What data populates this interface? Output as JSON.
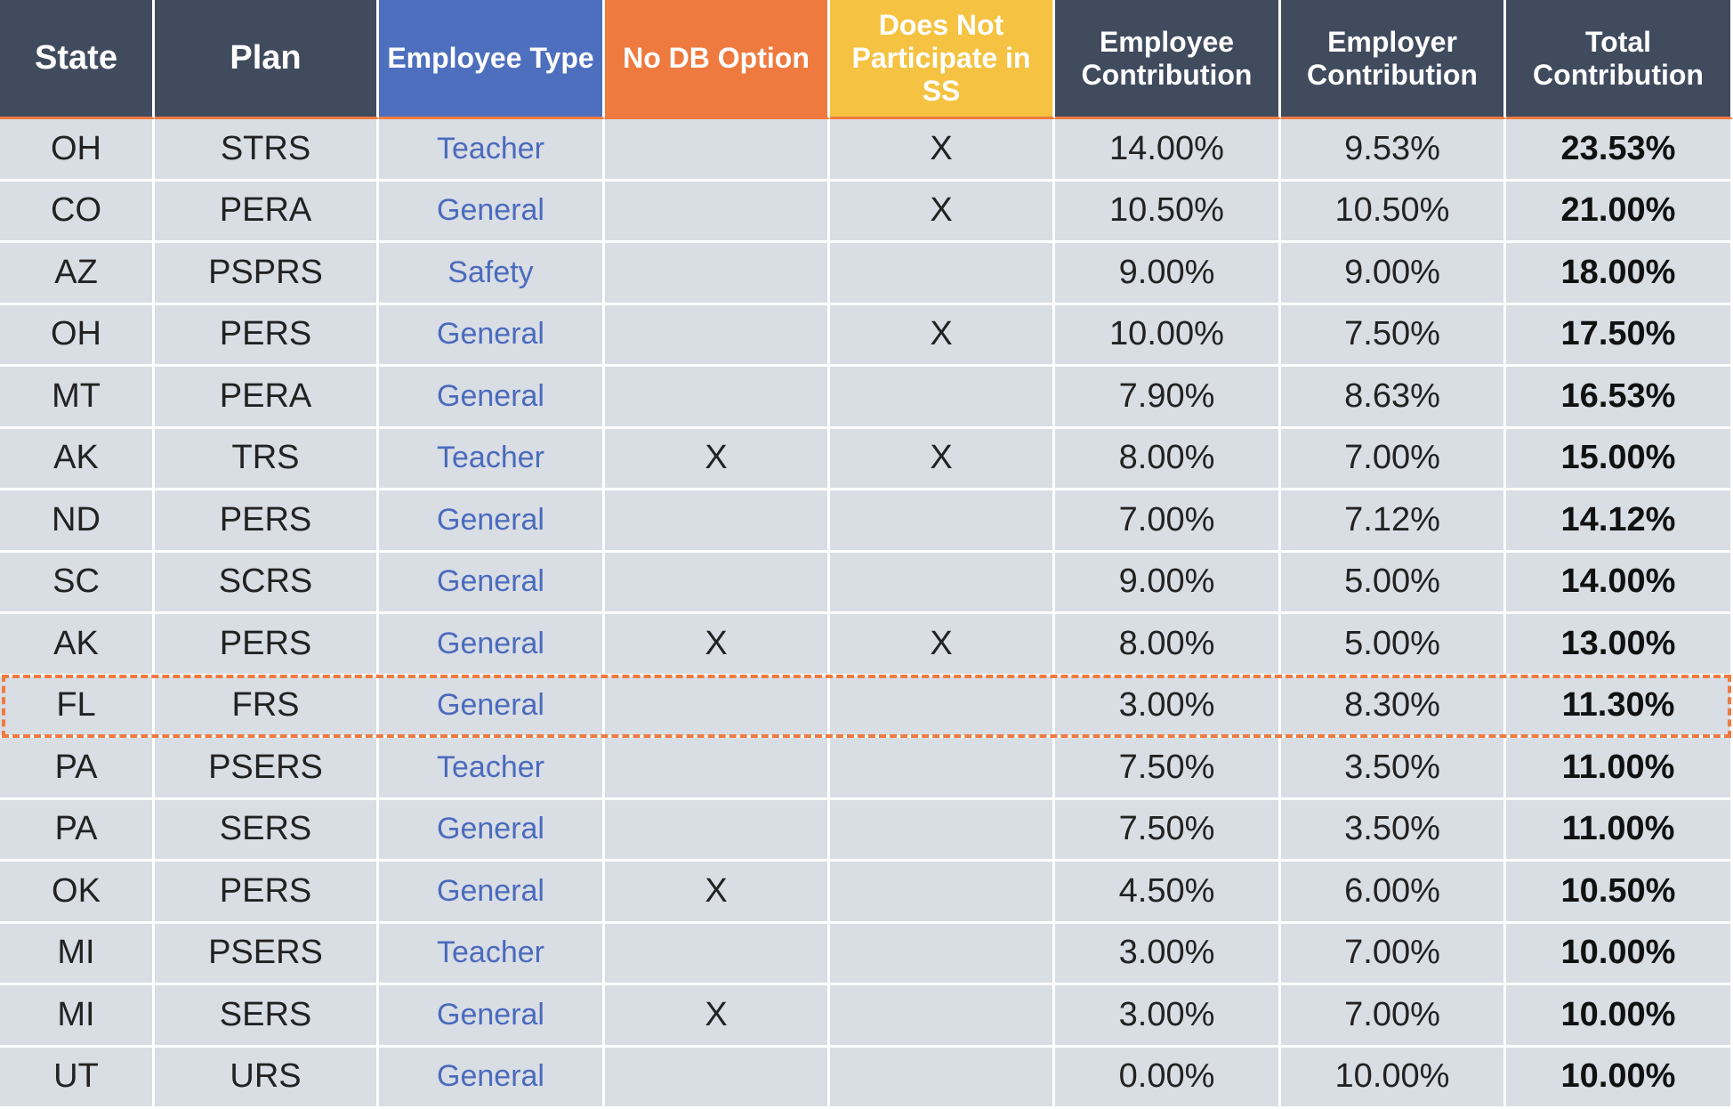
{
  "table": {
    "header": [
      "State",
      "Plan",
      "Employee Type",
      "No DB Option",
      "Does Not Participate in SS",
      "Employee Contribution",
      "Employer Contribution",
      "Total Contribution"
    ],
    "rows": [
      [
        "OH",
        "STRS",
        "Teacher",
        null,
        "X",
        "14.00%",
        "9.53%",
        "23.53%"
      ],
      [
        "CO",
        "PERA",
        "General",
        null,
        "X",
        "10.50%",
        "10.50%",
        "21.00%"
      ],
      [
        "AZ",
        "PSPRS",
        "Safety",
        null,
        null,
        "9.00%",
        "9.00%",
        "18.00%"
      ],
      [
        "OH",
        "PERS",
        "General",
        null,
        "X",
        "10.00%",
        "7.50%",
        "17.50%"
      ],
      [
        "MT",
        "PERA",
        "General",
        null,
        null,
        "7.90%",
        "8.63%",
        "16.53%"
      ],
      [
        "AK",
        "TRS",
        "Teacher",
        "X",
        "X",
        "8.00%",
        "7.00%",
        "15.00%"
      ],
      [
        "ND",
        "PERS",
        "General",
        null,
        null,
        "7.00%",
        "7.12%",
        "14.12%"
      ],
      [
        "SC",
        "SCRS",
        "General",
        null,
        null,
        "9.00%",
        "5.00%",
        "14.00%"
      ],
      [
        "AK",
        "PERS",
        "General",
        "X",
        "X",
        "8.00%",
        "5.00%",
        "13.00%"
      ],
      [
        "FL",
        "FRS",
        "General",
        null,
        null,
        "3.00%",
        "8.30%",
        "11.30%"
      ],
      [
        "PA",
        "PSERS",
        "Teacher",
        null,
        null,
        "7.50%",
        "3.50%",
        "11.00%"
      ],
      [
        "PA",
        "SERS",
        "General",
        null,
        null,
        "7.50%",
        "3.50%",
        "11.00%"
      ],
      [
        "OK",
        "PERS",
        "General",
        "X",
        null,
        "4.50%",
        "6.00%",
        "10.50%"
      ],
      [
        "MI",
        "PSERS",
        "Teacher",
        null,
        null,
        "3.00%",
        "7.00%",
        "10.00%"
      ],
      [
        "MI",
        "SERS",
        "General",
        "X",
        null,
        "3.00%",
        "7.00%",
        "10.00%"
      ],
      [
        "UT",
        "URS",
        "General",
        null,
        null,
        "0.00%",
        "10.00%",
        "10.00%"
      ]
    ]
  }
}
